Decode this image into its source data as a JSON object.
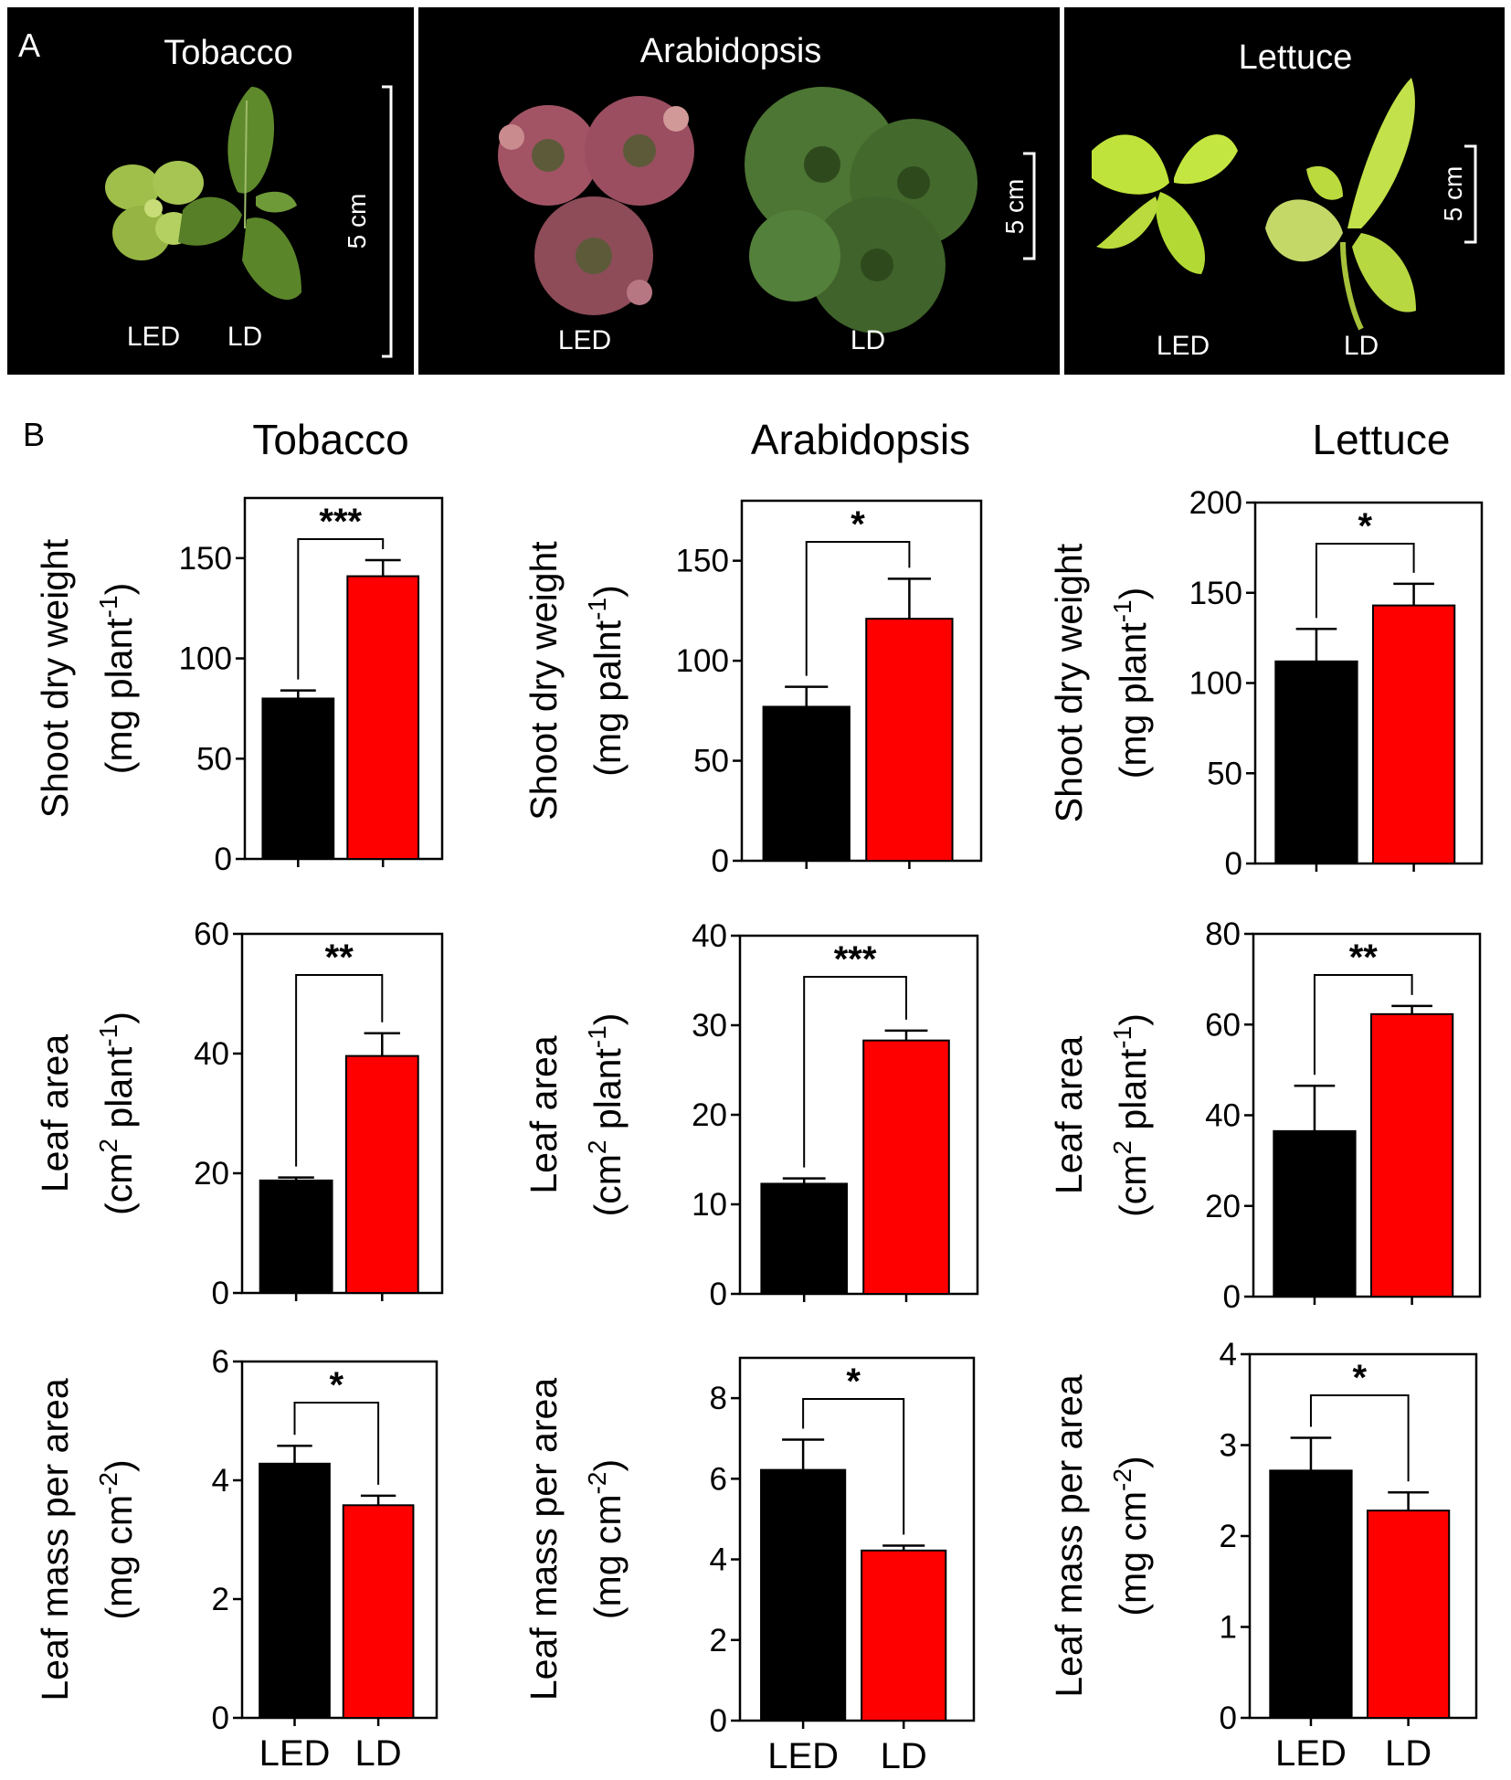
{
  "panel_a": {
    "letter": "A",
    "photos": [
      {
        "title": "Tobacco",
        "labels": [
          "LED",
          "LD"
        ],
        "scale": "5 cm"
      },
      {
        "title": "Arabidopsis",
        "labels": [
          "LED",
          "LD"
        ],
        "scale": "5 cm"
      },
      {
        "title": "Lettuce",
        "labels": [
          "LED",
          "LD"
        ],
        "scale": "5 cm"
      }
    ]
  },
  "panel_b": {
    "letter": "B",
    "column_titles": [
      "Tobacco",
      "Arabidopsis",
      "Lettuce"
    ],
    "row_ylabels": [
      {
        "line1": "Shoot dry weight",
        "line2_pre": "(mg plant",
        "sup": "-1",
        "line2_post": ")"
      },
      {
        "line1": "Leaf area",
        "line2_pre": "(cm",
        "sup": "2",
        "line2_post": " plant",
        "sup2": "-1",
        "line2_end": ")"
      },
      {
        "line1": "Leaf mass per area",
        "line2_pre": "(mg cm",
        "sup": "-2",
        "line2_post": ")"
      }
    ],
    "arabidopsis_shoot_ylabel_line2": "(mg palnt",
    "colors": {
      "LED": "#000000",
      "LD": "#ff0000"
    }
  },
  "chart_data": [
    {
      "type": "bar",
      "species": "Tobacco",
      "metric": "Shoot dry weight",
      "categories": [
        "LED",
        "LD"
      ],
      "values": [
        80,
        141
      ],
      "errors": [
        4,
        8
      ],
      "ylim": [
        0,
        180
      ],
      "yticks": [
        0,
        50,
        100,
        150
      ],
      "significance": "***"
    },
    {
      "type": "bar",
      "species": "Arabidopsis",
      "metric": "Shoot dry weight",
      "categories": [
        "LED",
        "LD"
      ],
      "values": [
        77,
        121
      ],
      "errors": [
        10,
        20
      ],
      "ylim": [
        0,
        180
      ],
      "yticks": [
        0,
        50,
        100,
        150
      ],
      "significance": "*"
    },
    {
      "type": "bar",
      "species": "Lettuce",
      "metric": "Shoot dry weight",
      "categories": [
        "LED",
        "LD"
      ],
      "values": [
        112,
        143
      ],
      "errors": [
        18,
        12
      ],
      "ylim": [
        0,
        200
      ],
      "yticks": [
        0,
        50,
        100,
        150,
        200
      ],
      "significance": "*"
    },
    {
      "type": "bar",
      "species": "Tobacco",
      "metric": "Leaf area",
      "categories": [
        "LED",
        "LD"
      ],
      "values": [
        18.8,
        39.6
      ],
      "errors": [
        0.5,
        3.8
      ],
      "ylim": [
        0,
        60
      ],
      "yticks": [
        0,
        20,
        40,
        60
      ],
      "significance": "**"
    },
    {
      "type": "bar",
      "species": "Arabidopsis",
      "metric": "Leaf area",
      "categories": [
        "LED",
        "LD"
      ],
      "values": [
        12.3,
        28.3
      ],
      "errors": [
        0.6,
        1.1
      ],
      "ylim": [
        0,
        40
      ],
      "yticks": [
        0,
        10,
        20,
        30,
        40
      ],
      "significance": "***"
    },
    {
      "type": "bar",
      "species": "Lettuce",
      "metric": "Leaf area",
      "categories": [
        "LED",
        "LD"
      ],
      "values": [
        36.5,
        62.3
      ],
      "errors": [
        10,
        1.8
      ],
      "ylim": [
        0,
        80
      ],
      "yticks": [
        0,
        20,
        40,
        60,
        80
      ],
      "significance": "**"
    },
    {
      "type": "bar",
      "species": "Tobacco",
      "metric": "Leaf mass per area",
      "categories": [
        "LED",
        "LD"
      ],
      "values": [
        4.28,
        3.58
      ],
      "errors": [
        0.3,
        0.16
      ],
      "ylim": [
        0,
        6
      ],
      "yticks": [
        0,
        2,
        4,
        6
      ],
      "significance": "*"
    },
    {
      "type": "bar",
      "species": "Arabidopsis",
      "metric": "Leaf mass per area",
      "categories": [
        "LED",
        "LD"
      ],
      "values": [
        6.22,
        4.22
      ],
      "errors": [
        0.75,
        0.12
      ],
      "ylim": [
        0,
        9
      ],
      "yticks": [
        0,
        2,
        4,
        6,
        8
      ],
      "significance": "*"
    },
    {
      "type": "bar",
      "species": "Lettuce",
      "metric": "Leaf mass per area",
      "categories": [
        "LED",
        "LD"
      ],
      "values": [
        2.72,
        2.28
      ],
      "errors": [
        0.36,
        0.2
      ],
      "ylim": [
        0,
        4
      ],
      "yticks": [
        0,
        1,
        2,
        3,
        4
      ],
      "significance": "*"
    }
  ]
}
